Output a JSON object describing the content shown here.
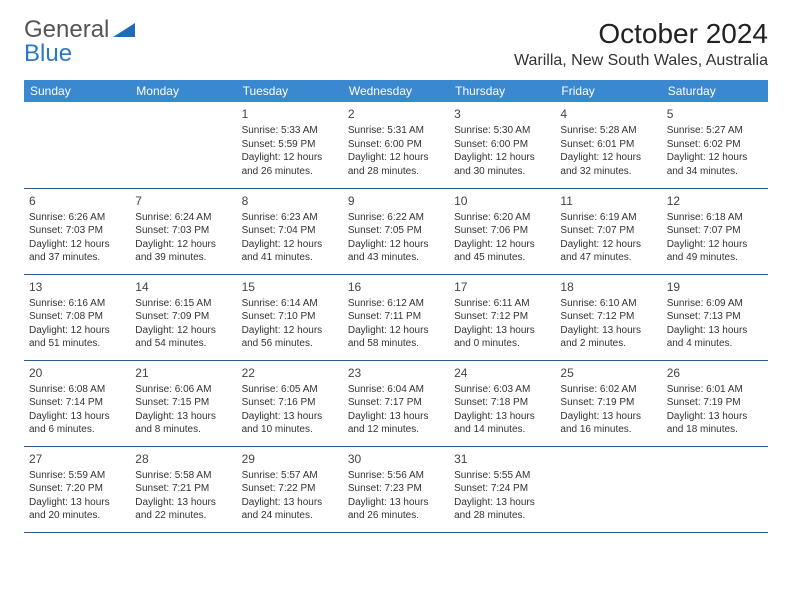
{
  "logo": {
    "general": "General",
    "blue": "Blue"
  },
  "title": "October 2024",
  "location": "Warilla, New South Wales, Australia",
  "days_header": [
    "Sunday",
    "Monday",
    "Tuesday",
    "Wednesday",
    "Thursday",
    "Friday",
    "Saturday"
  ],
  "colors": {
    "header_bg": "#3a88d0",
    "header_text": "#ffffff",
    "border": "#2b5a8a",
    "logo_blue": "#2b78c5"
  },
  "weeks": [
    [
      {
        "day": "",
        "sunrise": "",
        "sunset": "",
        "daylight1": "",
        "daylight2": ""
      },
      {
        "day": "",
        "sunrise": "",
        "sunset": "",
        "daylight1": "",
        "daylight2": ""
      },
      {
        "day": "1",
        "sunrise": "Sunrise: 5:33 AM",
        "sunset": "Sunset: 5:59 PM",
        "daylight1": "Daylight: 12 hours",
        "daylight2": "and 26 minutes."
      },
      {
        "day": "2",
        "sunrise": "Sunrise: 5:31 AM",
        "sunset": "Sunset: 6:00 PM",
        "daylight1": "Daylight: 12 hours",
        "daylight2": "and 28 minutes."
      },
      {
        "day": "3",
        "sunrise": "Sunrise: 5:30 AM",
        "sunset": "Sunset: 6:00 PM",
        "daylight1": "Daylight: 12 hours",
        "daylight2": "and 30 minutes."
      },
      {
        "day": "4",
        "sunrise": "Sunrise: 5:28 AM",
        "sunset": "Sunset: 6:01 PM",
        "daylight1": "Daylight: 12 hours",
        "daylight2": "and 32 minutes."
      },
      {
        "day": "5",
        "sunrise": "Sunrise: 5:27 AM",
        "sunset": "Sunset: 6:02 PM",
        "daylight1": "Daylight: 12 hours",
        "daylight2": "and 34 minutes."
      }
    ],
    [
      {
        "day": "6",
        "sunrise": "Sunrise: 6:26 AM",
        "sunset": "Sunset: 7:03 PM",
        "daylight1": "Daylight: 12 hours",
        "daylight2": "and 37 minutes."
      },
      {
        "day": "7",
        "sunrise": "Sunrise: 6:24 AM",
        "sunset": "Sunset: 7:03 PM",
        "daylight1": "Daylight: 12 hours",
        "daylight2": "and 39 minutes."
      },
      {
        "day": "8",
        "sunrise": "Sunrise: 6:23 AM",
        "sunset": "Sunset: 7:04 PM",
        "daylight1": "Daylight: 12 hours",
        "daylight2": "and 41 minutes."
      },
      {
        "day": "9",
        "sunrise": "Sunrise: 6:22 AM",
        "sunset": "Sunset: 7:05 PM",
        "daylight1": "Daylight: 12 hours",
        "daylight2": "and 43 minutes."
      },
      {
        "day": "10",
        "sunrise": "Sunrise: 6:20 AM",
        "sunset": "Sunset: 7:06 PM",
        "daylight1": "Daylight: 12 hours",
        "daylight2": "and 45 minutes."
      },
      {
        "day": "11",
        "sunrise": "Sunrise: 6:19 AM",
        "sunset": "Sunset: 7:07 PM",
        "daylight1": "Daylight: 12 hours",
        "daylight2": "and 47 minutes."
      },
      {
        "day": "12",
        "sunrise": "Sunrise: 6:18 AM",
        "sunset": "Sunset: 7:07 PM",
        "daylight1": "Daylight: 12 hours",
        "daylight2": "and 49 minutes."
      }
    ],
    [
      {
        "day": "13",
        "sunrise": "Sunrise: 6:16 AM",
        "sunset": "Sunset: 7:08 PM",
        "daylight1": "Daylight: 12 hours",
        "daylight2": "and 51 minutes."
      },
      {
        "day": "14",
        "sunrise": "Sunrise: 6:15 AM",
        "sunset": "Sunset: 7:09 PM",
        "daylight1": "Daylight: 12 hours",
        "daylight2": "and 54 minutes."
      },
      {
        "day": "15",
        "sunrise": "Sunrise: 6:14 AM",
        "sunset": "Sunset: 7:10 PM",
        "daylight1": "Daylight: 12 hours",
        "daylight2": "and 56 minutes."
      },
      {
        "day": "16",
        "sunrise": "Sunrise: 6:12 AM",
        "sunset": "Sunset: 7:11 PM",
        "daylight1": "Daylight: 12 hours",
        "daylight2": "and 58 minutes."
      },
      {
        "day": "17",
        "sunrise": "Sunrise: 6:11 AM",
        "sunset": "Sunset: 7:12 PM",
        "daylight1": "Daylight: 13 hours",
        "daylight2": "and 0 minutes."
      },
      {
        "day": "18",
        "sunrise": "Sunrise: 6:10 AM",
        "sunset": "Sunset: 7:12 PM",
        "daylight1": "Daylight: 13 hours",
        "daylight2": "and 2 minutes."
      },
      {
        "day": "19",
        "sunrise": "Sunrise: 6:09 AM",
        "sunset": "Sunset: 7:13 PM",
        "daylight1": "Daylight: 13 hours",
        "daylight2": "and 4 minutes."
      }
    ],
    [
      {
        "day": "20",
        "sunrise": "Sunrise: 6:08 AM",
        "sunset": "Sunset: 7:14 PM",
        "daylight1": "Daylight: 13 hours",
        "daylight2": "and 6 minutes."
      },
      {
        "day": "21",
        "sunrise": "Sunrise: 6:06 AM",
        "sunset": "Sunset: 7:15 PM",
        "daylight1": "Daylight: 13 hours",
        "daylight2": "and 8 minutes."
      },
      {
        "day": "22",
        "sunrise": "Sunrise: 6:05 AM",
        "sunset": "Sunset: 7:16 PM",
        "daylight1": "Daylight: 13 hours",
        "daylight2": "and 10 minutes."
      },
      {
        "day": "23",
        "sunrise": "Sunrise: 6:04 AM",
        "sunset": "Sunset: 7:17 PM",
        "daylight1": "Daylight: 13 hours",
        "daylight2": "and 12 minutes."
      },
      {
        "day": "24",
        "sunrise": "Sunrise: 6:03 AM",
        "sunset": "Sunset: 7:18 PM",
        "daylight1": "Daylight: 13 hours",
        "daylight2": "and 14 minutes."
      },
      {
        "day": "25",
        "sunrise": "Sunrise: 6:02 AM",
        "sunset": "Sunset: 7:19 PM",
        "daylight1": "Daylight: 13 hours",
        "daylight2": "and 16 minutes."
      },
      {
        "day": "26",
        "sunrise": "Sunrise: 6:01 AM",
        "sunset": "Sunset: 7:19 PM",
        "daylight1": "Daylight: 13 hours",
        "daylight2": "and 18 minutes."
      }
    ],
    [
      {
        "day": "27",
        "sunrise": "Sunrise: 5:59 AM",
        "sunset": "Sunset: 7:20 PM",
        "daylight1": "Daylight: 13 hours",
        "daylight2": "and 20 minutes."
      },
      {
        "day": "28",
        "sunrise": "Sunrise: 5:58 AM",
        "sunset": "Sunset: 7:21 PM",
        "daylight1": "Daylight: 13 hours",
        "daylight2": "and 22 minutes."
      },
      {
        "day": "29",
        "sunrise": "Sunrise: 5:57 AM",
        "sunset": "Sunset: 7:22 PM",
        "daylight1": "Daylight: 13 hours",
        "daylight2": "and 24 minutes."
      },
      {
        "day": "30",
        "sunrise": "Sunrise: 5:56 AM",
        "sunset": "Sunset: 7:23 PM",
        "daylight1": "Daylight: 13 hours",
        "daylight2": "and 26 minutes."
      },
      {
        "day": "31",
        "sunrise": "Sunrise: 5:55 AM",
        "sunset": "Sunset: 7:24 PM",
        "daylight1": "Daylight: 13 hours",
        "daylight2": "and 28 minutes."
      },
      {
        "day": "",
        "sunrise": "",
        "sunset": "",
        "daylight1": "",
        "daylight2": ""
      },
      {
        "day": "",
        "sunrise": "",
        "sunset": "",
        "daylight1": "",
        "daylight2": ""
      }
    ]
  ]
}
